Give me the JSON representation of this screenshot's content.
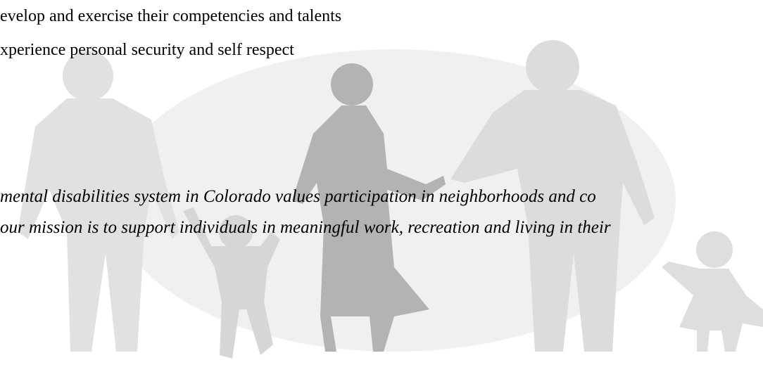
{
  "lines": [
    "evelop and exercise their competencies and talents",
    "xperience personal security and self respect"
  ],
  "mission": [
    "mental disabilities system in Colorado values participation in neighborhoods and co",
    "our mission is to support individuals in meaningful work, recreation and living in their"
  ]
}
